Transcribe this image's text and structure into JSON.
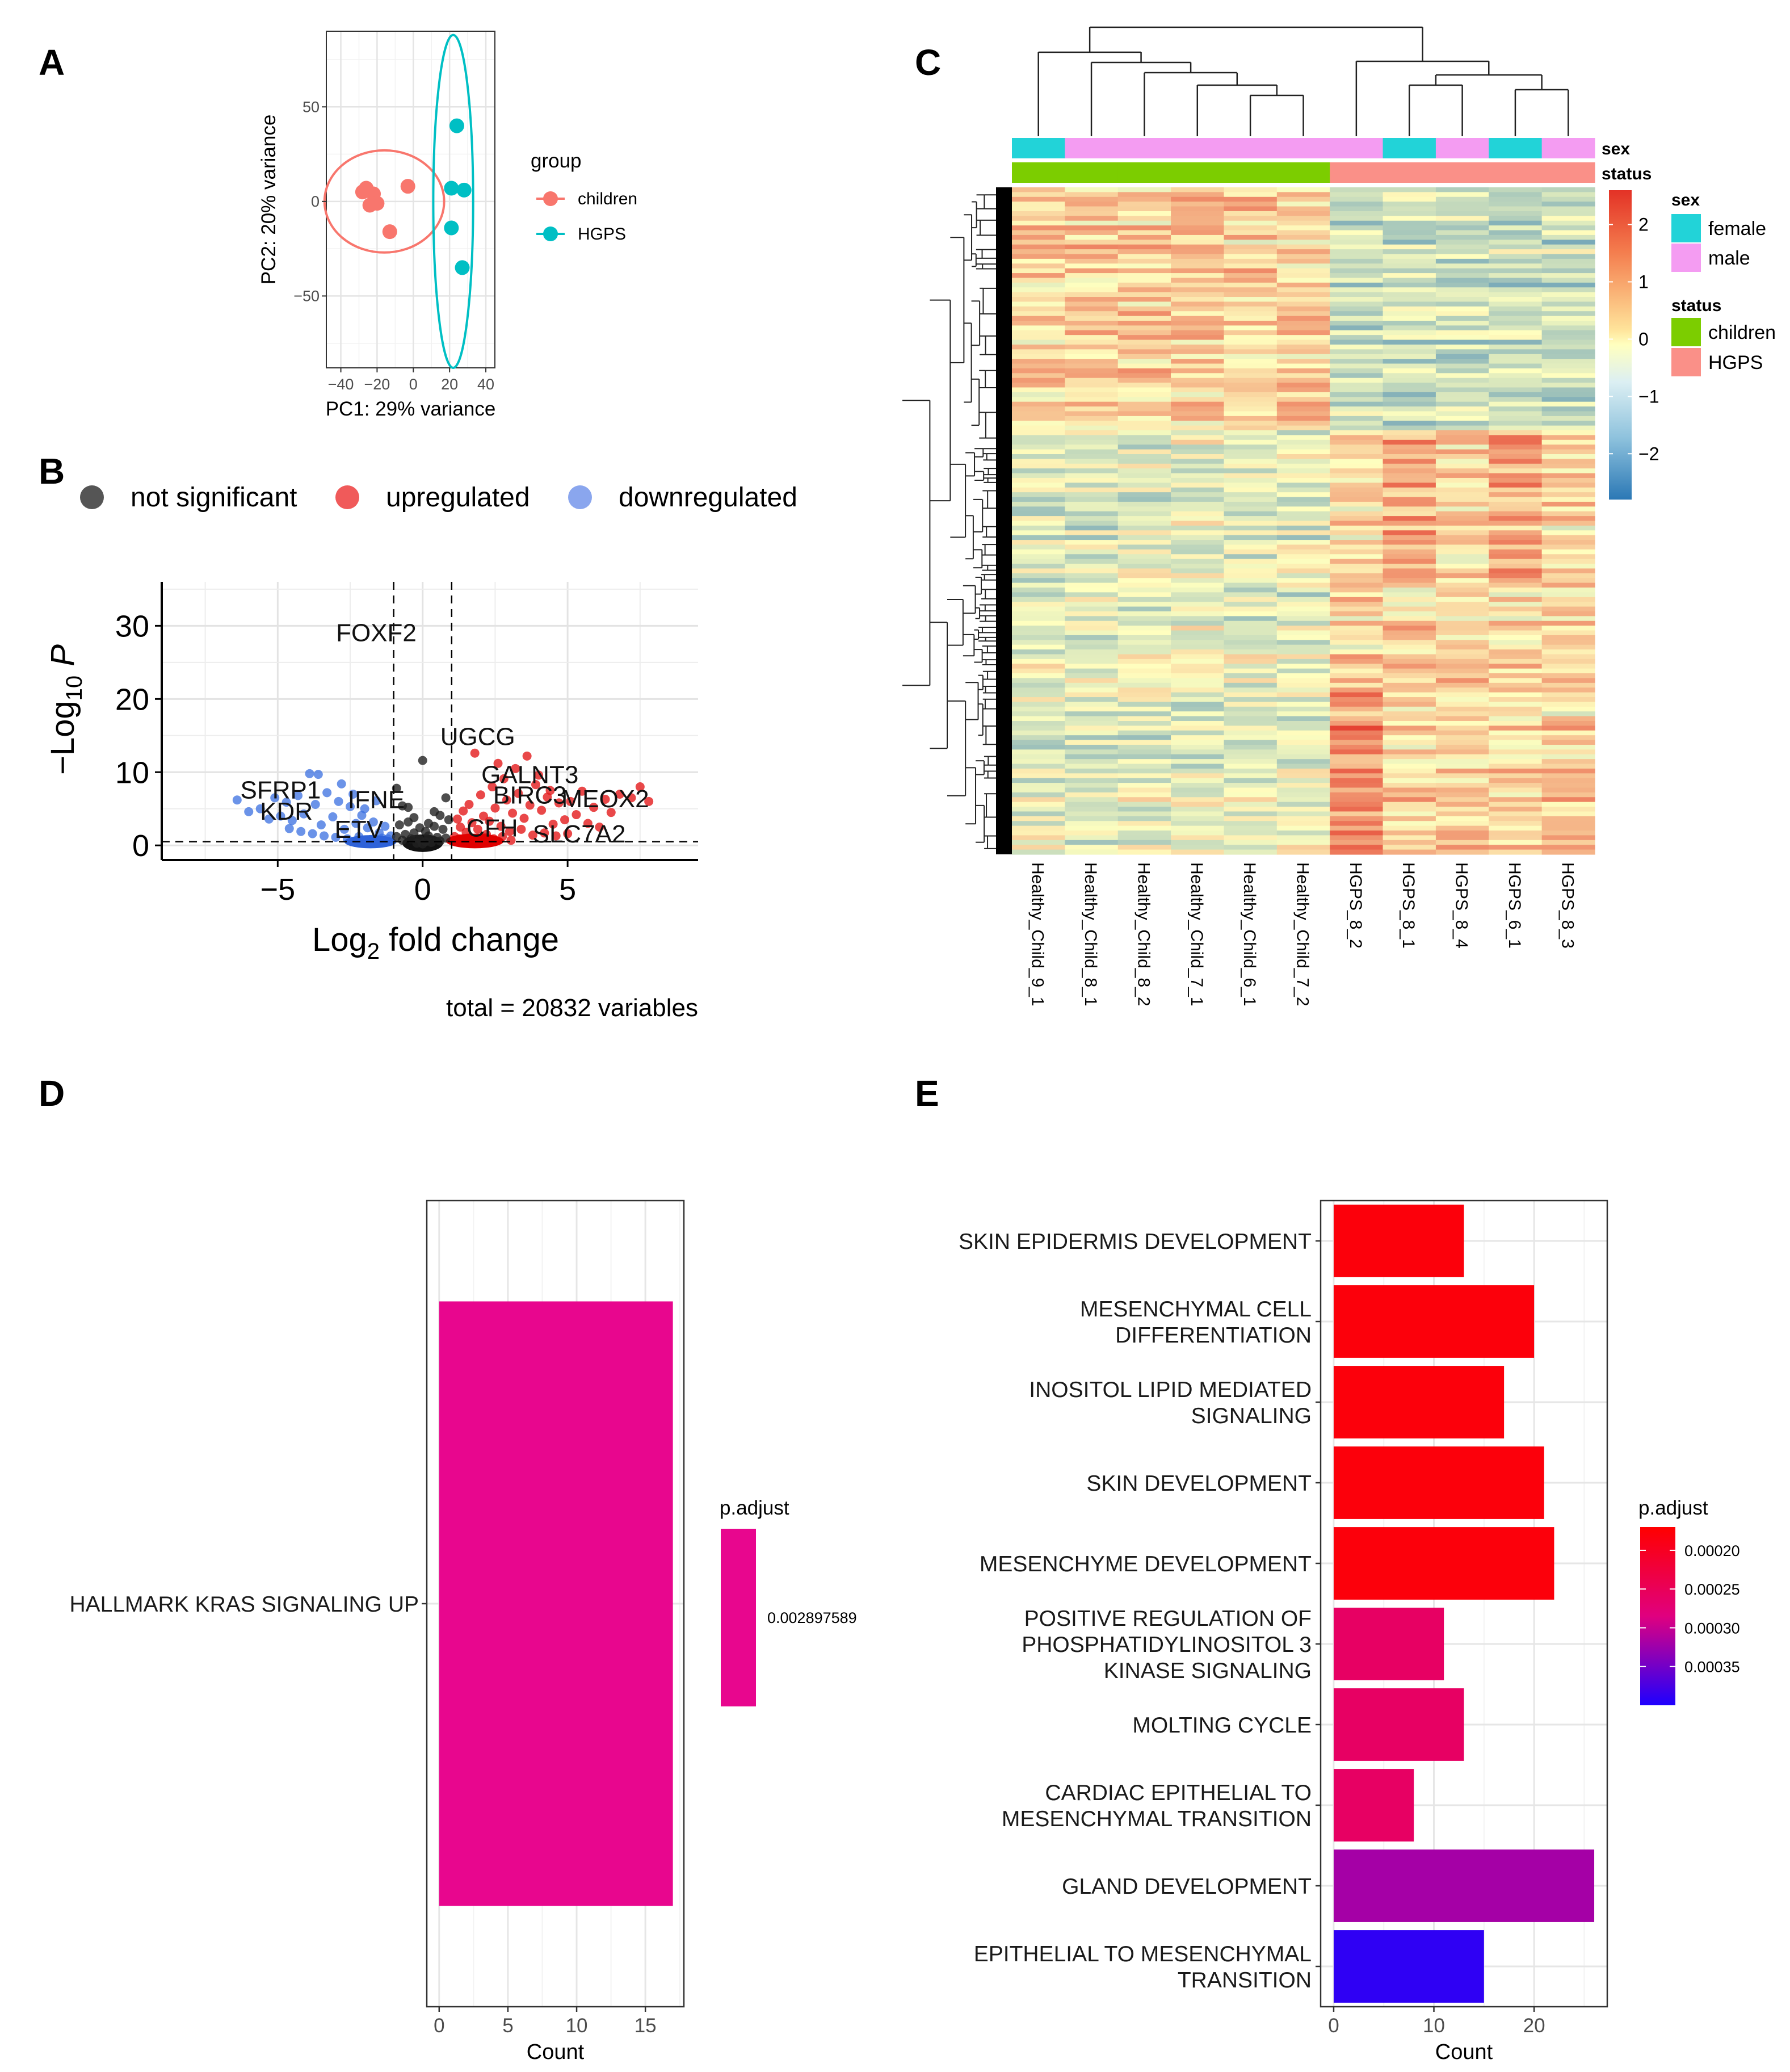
{
  "panels": {
    "A": "A",
    "B": "B",
    "C": "C",
    "D": "D",
    "E": "E"
  },
  "colors": {
    "children": "#F8766D",
    "hgps": "#00BFC4",
    "ns": "#555555",
    "up": "#E41A1C",
    "up_legend": "#F05A5A",
    "down": "#3A6FE0",
    "down_legend": "#8AA6EE",
    "sex_female": "#22D3D8",
    "sex_male": "#F49CF2",
    "status_children": "#7CCD00",
    "status_hgps": "#FA9088",
    "kras_bar": "#E8068E",
    "heat_low": "#2B78B5",
    "heat_mid": "#FFFFBF",
    "heat_high": "#E33226"
  },
  "chart_data": [
    {
      "id": "A",
      "type": "scatter",
      "title": "",
      "xlabel": "PC1: 29% variance",
      "ylabel": "PC2: 20% variance",
      "xlim": [
        -48,
        45
      ],
      "ylim": [
        -88,
        90
      ],
      "xticks": [
        -40,
        -20,
        0,
        20,
        40
      ],
      "xtick_labels": [
        "−40",
        "−20",
        "0",
        "20",
        "40"
      ],
      "yticks": [
        -50,
        0,
        50
      ],
      "ytick_labels": [
        "−50",
        "0",
        "50"
      ],
      "legend_title": "group",
      "series": [
        {
          "name": "children",
          "points": [
            [
              -28,
              5
            ],
            [
              -26,
              7
            ],
            [
              -22,
              4
            ],
            [
              -24,
              -2
            ],
            [
              -20,
              -1
            ],
            [
              -13,
              -16
            ],
            [
              -3,
              8
            ]
          ]
        },
        {
          "name": "HGPS",
          "points": [
            [
              24,
              40
            ],
            [
              21,
              7
            ],
            [
              28,
              6
            ],
            [
              21,
              -14
            ],
            [
              27,
              -35
            ]
          ]
        }
      ],
      "ellipses": [
        {
          "name": "children",
          "cx": -16,
          "cy": 0,
          "rx": 33,
          "ry": 27
        },
        {
          "name": "HGPS",
          "cx": 22,
          "cy": 0,
          "rx": 11,
          "ry": 88
        }
      ]
    },
    {
      "id": "B",
      "type": "scatter",
      "title": "",
      "xlabel": "Log2 fold change",
      "ylabel": "−Log10 P",
      "xlim": [
        -9,
        9.5
      ],
      "ylim": [
        -2,
        36
      ],
      "xticks": [
        -5,
        0,
        5
      ],
      "xtick_labels": [
        "−5",
        "0",
        "5"
      ],
      "yticks": [
        0,
        10,
        20,
        30
      ],
      "ytick_labels": [
        "0",
        "10",
        "20",
        "30"
      ],
      "vlines": [
        -1,
        1
      ],
      "hline": 0.5,
      "caption": "total = 20832 variables",
      "legend": [
        {
          "key": "ns",
          "label": "not significant"
        },
        {
          "key": "up",
          "label": "upregulated"
        },
        {
          "key": "down",
          "label": "downregulated"
        }
      ],
      "labeled_points": [
        {
          "label": "FOXF2",
          "x": -1.6,
          "y": 29,
          "tx": -1.6,
          "ty": 29
        },
        {
          "label": "UGCG",
          "x": 1.8,
          "y": 14,
          "tx": 1.9,
          "ty": 14.8
        },
        {
          "label": "GALNT3",
          "x": 3.3,
          "y": 9,
          "tx": 3.7,
          "ty": 9.6
        },
        {
          "label": "BIRC3",
          "x": 3.8,
          "y": 6,
          "tx": 3.7,
          "ty": 6.8
        },
        {
          "label": "MEOX2",
          "x": 6.5,
          "y": 6,
          "tx": 6.3,
          "ty": 6.3
        },
        {
          "label": "SFRP1",
          "x": -4.5,
          "y": 8,
          "tx": -4.9,
          "ty": 7.5
        },
        {
          "label": "KDR",
          "x": -4.8,
          "y": 5,
          "tx": -4.7,
          "ty": 4.6
        },
        {
          "label": "IFNE",
          "x": -2.0,
          "y": 6,
          "tx": -1.6,
          "ty": 6.2
        },
        {
          "label": "ETV",
          "x": -2.2,
          "y": 2,
          "tx": -2.2,
          "ty": 2.1
        },
        {
          "label": "CFH",
          "x": 2.3,
          "y": 2.3,
          "tx": 2.4,
          "ty": 2.3
        },
        {
          "label": "SLC7A2",
          "x": 4.5,
          "y": 2,
          "tx": 5.4,
          "ty": 1.5
        }
      ],
      "points_ns": [
        [
          0,
          0.2
        ],
        [
          0.1,
          0.5
        ],
        [
          -0.1,
          0.8
        ],
        [
          0.2,
          1.3
        ],
        [
          -0.3,
          1.7
        ],
        [
          0.4,
          2.6
        ],
        [
          -0.5,
          3.2
        ],
        [
          0.6,
          4.1
        ],
        [
          -0.7,
          5.4
        ],
        [
          0.8,
          6.5
        ],
        [
          -0.9,
          7.8
        ],
        [
          0.0,
          11.6
        ],
        [
          -0.2,
          0.3
        ],
        [
          0.3,
          0.4
        ],
        [
          -0.4,
          0.9
        ],
        [
          0.5,
          1.1
        ],
        [
          -0.6,
          1.5
        ],
        [
          0.7,
          2.2
        ],
        [
          -0.8,
          2.8
        ],
        [
          0.9,
          3.5
        ],
        [
          0.1,
          1.9
        ],
        [
          -0.1,
          2.4
        ],
        [
          0.2,
          3.0
        ],
        [
          -0.3,
          3.8
        ],
        [
          0.4,
          4.6
        ],
        [
          -0.5,
          5.2
        ],
        [
          0.6,
          0.6
        ],
        [
          -0.7,
          0.7
        ],
        [
          0.8,
          1.0
        ],
        [
          -0.9,
          1.2
        ]
      ],
      "points_up": [
        [
          1.1,
          1.2
        ],
        [
          1.3,
          2.5
        ],
        [
          1.5,
          1.8
        ],
        [
          1.7,
          3.1
        ],
        [
          1.9,
          2.2
        ],
        [
          2.1,
          4.0
        ],
        [
          2.3,
          3.3
        ],
        [
          2.5,
          5.1
        ],
        [
          2.7,
          2.6
        ],
        [
          2.9,
          6.2
        ],
        [
          3.1,
          4.4
        ],
        [
          3.3,
          7.1
        ],
        [
          3.5,
          3.7
        ],
        [
          3.7,
          5.5
        ],
        [
          3.9,
          8.3
        ],
        [
          4.1,
          4.8
        ],
        [
          4.3,
          6.6
        ],
        [
          4.5,
          2.9
        ],
        [
          4.7,
          5.8
        ],
        [
          4.9,
          3.5
        ],
        [
          5.1,
          6.0
        ],
        [
          5.3,
          4.2
        ],
        [
          5.5,
          7.4
        ],
        [
          5.7,
          3.0
        ],
        [
          5.9,
          5.2
        ],
        [
          6.1,
          2.5
        ],
        [
          6.3,
          6.3
        ],
        [
          6.5,
          4.5
        ],
        [
          6.8,
          7.0
        ],
        [
          7.2,
          6.5
        ],
        [
          7.5,
          8.0
        ],
        [
          7.8,
          6.0
        ],
        [
          1.6,
          5.6
        ],
        [
          2.0,
          6.9
        ],
        [
          2.4,
          8.0
        ],
        [
          2.8,
          9.1
        ],
        [
          3.2,
          10.5
        ],
        [
          1.8,
          12.6
        ],
        [
          2.6,
          11.2
        ],
        [
          3.6,
          12.2
        ],
        [
          4.0,
          9.6
        ],
        [
          4.4,
          7.5
        ],
        [
          1.2,
          3.6
        ],
        [
          1.4,
          4.7
        ],
        [
          2.2,
          1.5
        ],
        [
          3.0,
          1.9
        ],
        [
          3.4,
          2.2
        ],
        [
          3.8,
          1.4
        ],
        [
          4.2,
          1.7
        ],
        [
          4.6,
          1.3
        ],
        [
          5.0,
          1.6
        ],
        [
          1.25,
          0.9
        ],
        [
          1.55,
          1.0
        ],
        [
          1.85,
          0.8
        ],
        [
          2.15,
          1.1
        ],
        [
          2.45,
          0.9
        ],
        [
          2.75,
          1.2
        ],
        [
          3.05,
          0.7
        ]
      ],
      "points_down": [
        [
          -1.1,
          1.3
        ],
        [
          -1.3,
          2.6
        ],
        [
          -1.5,
          1.7
        ],
        [
          -1.7,
          3.2
        ],
        [
          -1.9,
          2.4
        ],
        [
          -2.1,
          4.1
        ],
        [
          -2.3,
          3.0
        ],
        [
          -2.5,
          5.3
        ],
        [
          -2.7,
          2.2
        ],
        [
          -2.9,
          6.0
        ],
        [
          -3.1,
          3.9
        ],
        [
          -3.3,
          7.2
        ],
        [
          -3.5,
          2.8
        ],
        [
          -3.7,
          5.6
        ],
        [
          -3.9,
          9.8
        ],
        [
          -4.1,
          4.3
        ],
        [
          -4.3,
          6.8
        ],
        [
          -4.5,
          3.4
        ],
        [
          -4.7,
          5.9
        ],
        [
          -4.9,
          4.0
        ],
        [
          -5.1,
          6.5
        ],
        [
          -5.3,
          3.6
        ],
        [
          -5.6,
          5.0
        ],
        [
          -6.0,
          4.6
        ],
        [
          -6.4,
          6.2
        ],
        [
          -3.6,
          9.7
        ],
        [
          -1.6,
          6.1
        ],
        [
          -2.0,
          5.0
        ],
        [
          -2.4,
          7.0
        ],
        [
          -2.8,
          8.4
        ],
        [
          -1.2,
          0.9
        ],
        [
          -1.4,
          1.0
        ],
        [
          -1.8,
          0.8
        ],
        [
          -2.2,
          1.2
        ],
        [
          -2.6,
          0.9
        ],
        [
          -3.0,
          1.1
        ],
        [
          -3.4,
          1.3
        ],
        [
          -3.8,
          1.6
        ],
        [
          -4.2,
          1.9
        ],
        [
          -4.6,
          2.3
        ]
      ]
    },
    {
      "id": "C",
      "type": "heatmap",
      "title": "",
      "columns": [
        "Healthy_Child_9_1",
        "Healthy_Child_8_1",
        "Healthy_Child_8_2",
        "Healthy_Child_7_1",
        "Healthy_Child_6_1",
        "Healthy_Child_7_2",
        "HGPS_8_2",
        "HGPS_8_1",
        "HGPS_8_4",
        "HGPS_6_1",
        "HGPS_8_3"
      ],
      "sex": [
        "female",
        "male",
        "male",
        "male",
        "male",
        "male",
        "male",
        "female",
        "male",
        "female",
        "male"
      ],
      "status": [
        "children",
        "children",
        "children",
        "children",
        "children",
        "children",
        "HGPS",
        "HGPS",
        "HGPS",
        "HGPS",
        "HGPS"
      ],
      "annotation_labels": [
        "sex",
        "status"
      ],
      "legend_sex": {
        "title": "sex",
        "entries": [
          "female",
          "male"
        ]
      },
      "legend_status": {
        "title": "status",
        "entries": [
          "children",
          "HGPS"
        ]
      },
      "scale_ticks": [
        2,
        1,
        0,
        -1,
        -2
      ],
      "scale_tick_labels": [
        "2",
        "1",
        "0",
        "−1",
        "−2"
      ],
      "scale_range": [
        -2.8,
        2.6
      ],
      "row_count": 140
    },
    {
      "id": "D",
      "type": "bar",
      "orientation": "horizontal",
      "title": "",
      "categories": [
        "HALLMARK KRAS SIGNALING UP"
      ],
      "values": [
        17
      ],
      "padj": [
        0.002897589
      ],
      "xlabel": "Count",
      "ylabel": "",
      "xlim": [
        -0.9,
        17.8
      ],
      "xticks": [
        0,
        5,
        10,
        15
      ],
      "xtick_labels": [
        "0",
        "5",
        "10",
        "15"
      ],
      "legend_title": "p.adjust",
      "legend_value": "0.002897589"
    },
    {
      "id": "E",
      "type": "bar",
      "orientation": "horizontal",
      "title": "",
      "categories": [
        [
          "SKIN EPIDERMIS DEVELOPMENT"
        ],
        [
          "MESENCHYMAL CELL",
          "DIFFERENTIATION"
        ],
        [
          "INOSITOL LIPID MEDIATED",
          "SIGNALING"
        ],
        [
          "SKIN DEVELOPMENT"
        ],
        [
          "MESENCHYME DEVELOPMENT"
        ],
        [
          "POSITIVE REGULATION OF",
          "PHOSPHATIDYLINOSITOL 3",
          "KINASE SIGNALING"
        ],
        [
          "MOLTING CYCLE"
        ],
        [
          "CARDIAC EPITHELIAL TO",
          "MESENCHYMAL TRANSITION"
        ],
        [
          "GLAND DEVELOPMENT"
        ],
        [
          "EPITHELIAL TO MESENCHYMAL",
          "TRANSITION"
        ]
      ],
      "values": [
        13,
        20,
        17,
        21,
        22,
        11,
        13,
        8,
        26,
        15
      ],
      "padj": [
        0.00018,
        0.00018,
        0.00018,
        0.00018,
        0.00018,
        0.00026,
        0.00026,
        0.00026,
        0.00032,
        0.00039
      ],
      "xlabel": "Count",
      "ylabel": "",
      "xlim": [
        -1.3,
        27.3
      ],
      "xticks": [
        0,
        10,
        20
      ],
      "xtick_labels": [
        "0",
        "10",
        "20"
      ],
      "legend_title": "p.adjust",
      "legend_ticks": [
        0.0002,
        0.00025,
        0.0003,
        0.00035
      ],
      "legend_tick_labels": [
        "0.00020",
        "0.00025",
        "0.00030",
        "0.00035"
      ],
      "padj_range": [
        0.00017,
        0.0004
      ]
    }
  ]
}
